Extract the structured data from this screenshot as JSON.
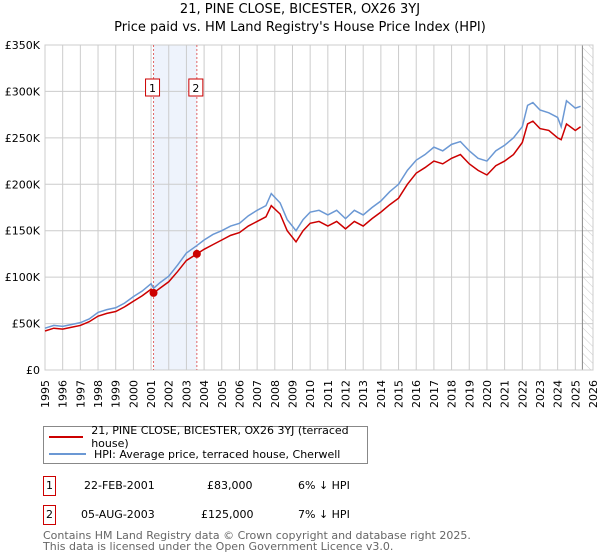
{
  "title": "21, PINE CLOSE, BICESTER, OX26 3YJ",
  "subtitle": "Price paid vs. HM Land Registry's House Price Index (HPI)",
  "chart_data": {
    "type": "line",
    "xlim": [
      1995,
      2026
    ],
    "ylim": [
      0,
      350000
    ],
    "y_ticks": [
      {
        "v": 0,
        "label": "£0"
      },
      {
        "v": 50000,
        "label": "£50K"
      },
      {
        "v": 100000,
        "label": "£100K"
      },
      {
        "v": 150000,
        "label": "£150K"
      },
      {
        "v": 200000,
        "label": "£200K"
      },
      {
        "v": 250000,
        "label": "£250K"
      },
      {
        "v": 300000,
        "label": "£300K"
      },
      {
        "v": 350000,
        "label": "£350K"
      }
    ],
    "x_ticks": [
      "1995",
      "1996",
      "1997",
      "1998",
      "1999",
      "2000",
      "2001",
      "2002",
      "2003",
      "2004",
      "2005",
      "2006",
      "2007",
      "2008",
      "2009",
      "2010",
      "2011",
      "2012",
      "2013",
      "2014",
      "2015",
      "2016",
      "2017",
      "2018",
      "2019",
      "2020",
      "2021",
      "2022",
      "2023",
      "2024",
      "2025",
      "2026"
    ],
    "grid": true,
    "shaded_range": [
      2001.14,
      2003.59
    ],
    "hatched_from": 2025.4,
    "series": [
      {
        "name": "21, PINE CLOSE, BICESTER, OX26 3YJ (terraced house)",
        "color": "#cc0000",
        "x": [
          1995,
          1995.5,
          1996,
          1996.5,
          1997,
          1997.5,
          1998,
          1998.5,
          1999,
          1999.5,
          2000,
          2000.5,
          2001,
          2001.14,
          2001.5,
          2002,
          2002.5,
          2003,
          2003.59,
          2004,
          2004.5,
          2005,
          2005.5,
          2006,
          2006.5,
          2007,
          2007.5,
          2007.8,
          2008.3,
          2008.7,
          2009.2,
          2009.6,
          2010,
          2010.5,
          2011,
          2011.5,
          2012,
          2012.5,
          2013,
          2013.5,
          2014,
          2014.5,
          2015,
          2015.5,
          2016,
          2016.5,
          2017,
          2017.5,
          2018,
          2018.5,
          2019,
          2019.5,
          2020,
          2020.5,
          2021,
          2021.5,
          2022,
          2022.3,
          2022.6,
          2023,
          2023.5,
          2024,
          2024.2,
          2024.5,
          2025,
          2025.3
        ],
        "y": [
          42000,
          45000,
          44000,
          46000,
          48000,
          52000,
          58000,
          61000,
          63000,
          68000,
          74000,
          80000,
          87000,
          83000,
          88000,
          95000,
          106000,
          118000,
          125000,
          130000,
          135000,
          140000,
          145000,
          148000,
          155000,
          160000,
          165000,
          177000,
          168000,
          150000,
          138000,
          150000,
          158000,
          160000,
          155000,
          160000,
          152000,
          160000,
          155000,
          163000,
          170000,
          178000,
          185000,
          200000,
          212000,
          218000,
          225000,
          222000,
          228000,
          232000,
          222000,
          215000,
          210000,
          220000,
          225000,
          232000,
          245000,
          265000,
          268000,
          260000,
          258000,
          250000,
          248000,
          265000,
          258000,
          262000
        ]
      },
      {
        "name": "HPI: Average price, terraced house, Cherwell",
        "color": "#6b98d4",
        "x": [
          1995,
          1995.5,
          1996,
          1996.5,
          1997,
          1997.5,
          1998,
          1998.5,
          1999,
          1999.5,
          2000,
          2000.5,
          2001,
          2001.14,
          2001.5,
          2002,
          2002.5,
          2003,
          2003.59,
          2004,
          2004.5,
          2005,
          2005.5,
          2006,
          2006.5,
          2007,
          2007.5,
          2007.8,
          2008.3,
          2008.7,
          2009.2,
          2009.6,
          2010,
          2010.5,
          2011,
          2011.5,
          2012,
          2012.5,
          2013,
          2013.5,
          2014,
          2014.5,
          2015,
          2015.5,
          2016,
          2016.5,
          2017,
          2017.5,
          2018,
          2018.5,
          2019,
          2019.5,
          2020,
          2020.5,
          2021,
          2021.5,
          2022,
          2022.3,
          2022.6,
          2023,
          2023.5,
          2024,
          2024.2,
          2024.5,
          2025,
          2025.3
        ],
        "y": [
          45000,
          48000,
          47000,
          49000,
          51000,
          55000,
          62000,
          65000,
          67000,
          72000,
          79000,
          85000,
          93000,
          88000,
          94000,
          101000,
          113000,
          126000,
          134000,
          140000,
          146000,
          150000,
          155000,
          158000,
          166000,
          172000,
          177000,
          190000,
          180000,
          162000,
          150000,
          162000,
          170000,
          172000,
          167000,
          172000,
          163000,
          172000,
          167000,
          175000,
          182000,
          192000,
          200000,
          215000,
          226000,
          232000,
          240000,
          236000,
          243000,
          246000,
          236000,
          228000,
          225000,
          236000,
          242000,
          250000,
          262000,
          285000,
          288000,
          280000,
          277000,
          272000,
          262000,
          290000,
          282000,
          284000
        ]
      }
    ]
  },
  "markers": [
    {
      "label": "1",
      "date": "22-FEB-2001",
      "x": 2001.14,
      "price": "£83,000",
      "value": 83000,
      "hpi": "6% ↓ HPI"
    },
    {
      "label": "2",
      "date": "05-AUG-2003",
      "x": 2003.59,
      "price": "£125,000",
      "value": 125000,
      "hpi": "7% ↓ HPI"
    }
  ],
  "footer": [
    "Contains HM Land Registry data © Crown copyright and database right 2025.",
    "This data is licensed under the Open Government Licence v3.0."
  ]
}
